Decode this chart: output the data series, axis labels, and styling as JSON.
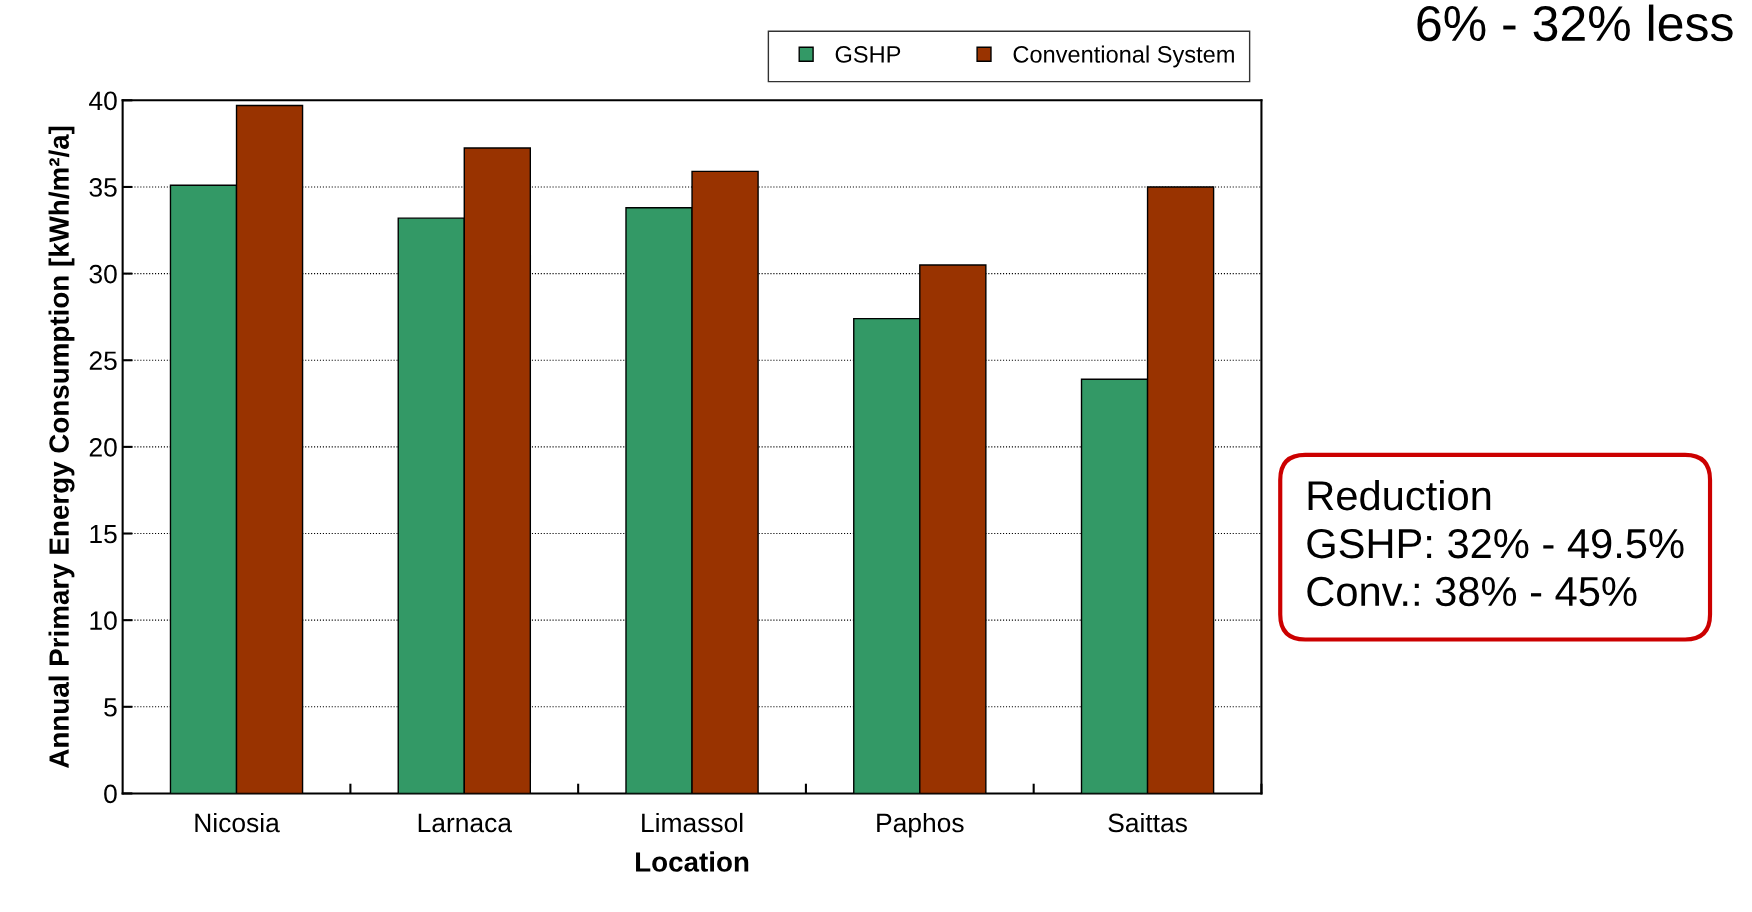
{
  "chart_data": {
    "type": "bar",
    "xlabel": "Location",
    "ylabel": "Annual Primary Energy Consumption [kWh/m²/a]",
    "categories": [
      "Nicosia",
      "Larnaca",
      "Limassol",
      "Paphos",
      "Saittas"
    ],
    "series": [
      {
        "name": "GSHP",
        "color": "#339966",
        "values": [
          35.1,
          33.2,
          33.8,
          27.4,
          23.9
        ]
      },
      {
        "name": "Conventional System",
        "color": "#993300",
        "values": [
          39.7,
          37.25,
          35.9,
          30.5,
          35.0
        ]
      }
    ],
    "ylim": [
      0,
      40
    ],
    "yticks": [
      0,
      5,
      10,
      15,
      20,
      25,
      30,
      35,
      40
    ],
    "grid": "y",
    "legend": "top right",
    "annotations": [
      "6% - 32% less",
      "Reduction\nGSHP: 32% - 49.5%\nConv.: 38% - 45%"
    ]
  }
}
